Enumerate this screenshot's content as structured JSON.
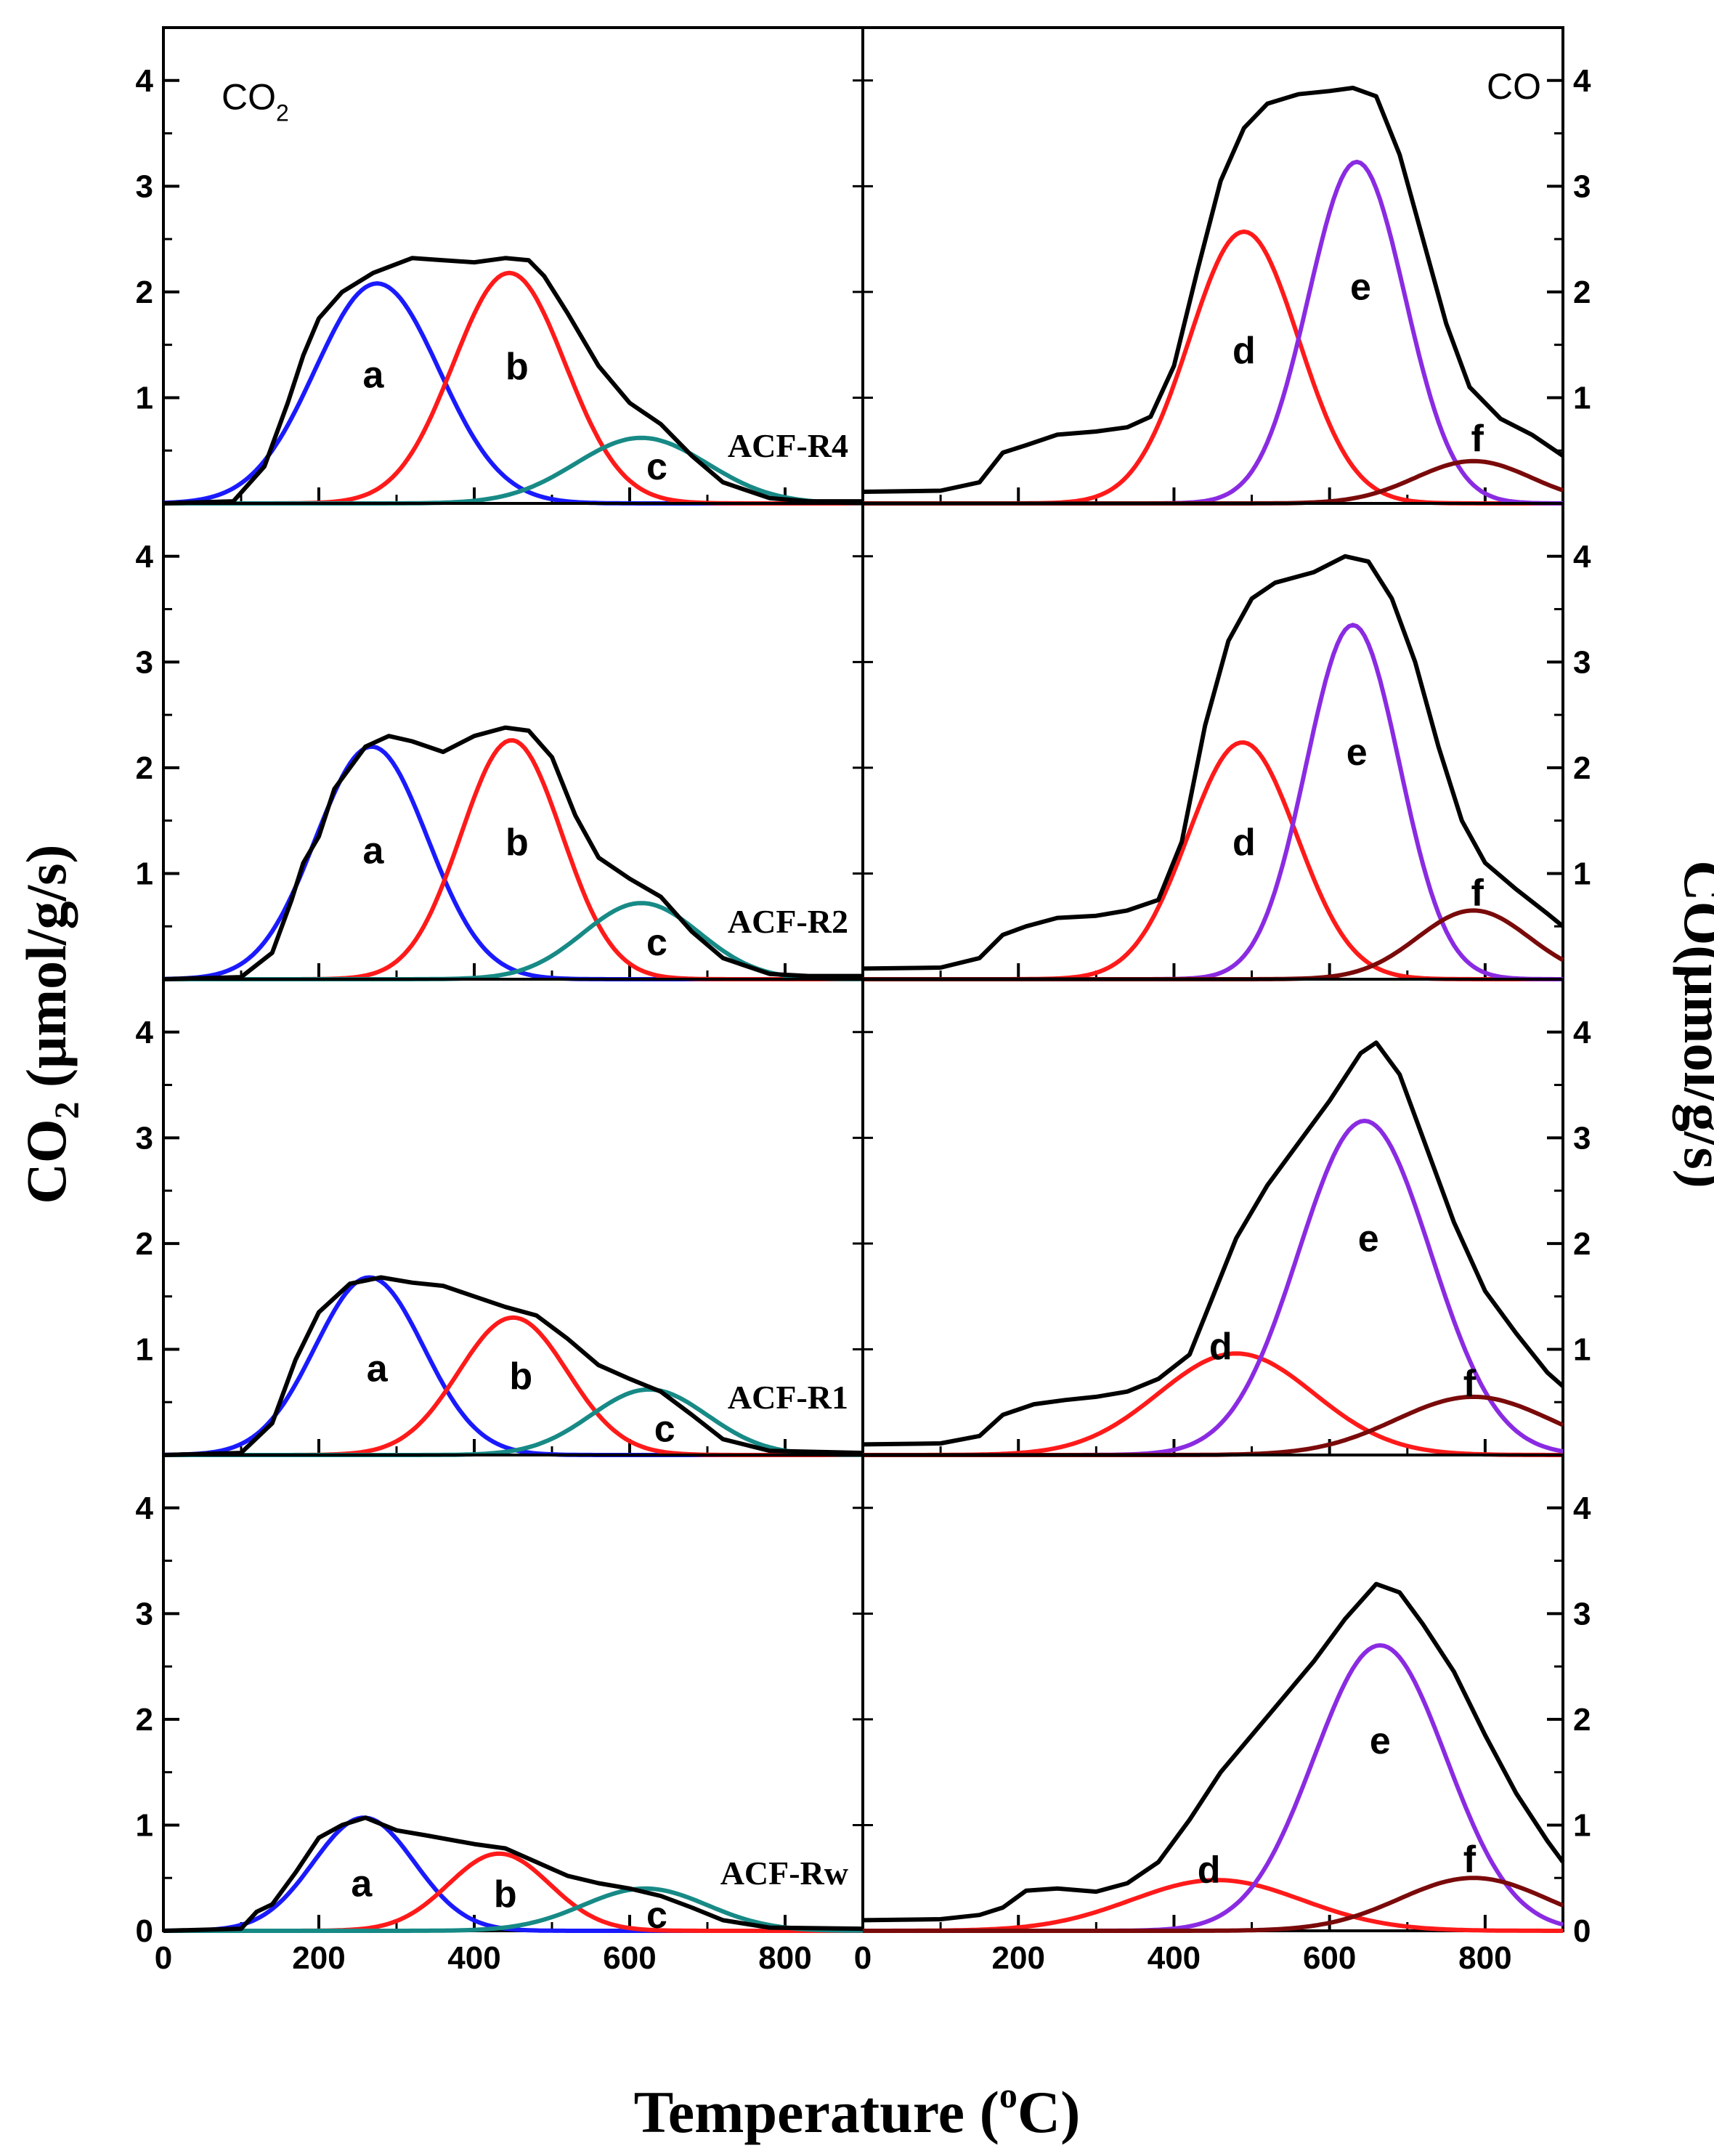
{
  "chart_data": {
    "type": "line",
    "x_label_prefix": "Temperature (",
    "x_label_sup": "o",
    "x_label_suffix": "C)",
    "y_left_label_main": "CO",
    "y_left_label_sub": "2",
    "y_left_label_unit": " (μmol/g/s)",
    "y_right_label": "CO(μmol/g/s)",
    "ylim": [
      0,
      4.5
    ],
    "y_ticks": [
      0,
      1,
      2,
      3,
      4
    ],
    "xlim_left": [
      0,
      900
    ],
    "xlim_right": [
      0,
      900
    ],
    "x_ticks_left": [
      0,
      200,
      400,
      600,
      800
    ],
    "x_ticks_right": [
      0,
      200,
      400,
      600,
      800
    ],
    "gas_label_left_main": "CO",
    "gas_label_left_sub": "2",
    "gas_label_right": "CO",
    "colors": {
      "total": "#000000",
      "a": "#1a1aff",
      "b": "#ff1a1a",
      "c": "#178a86",
      "d": "#ff1a1a",
      "e": "#8a2be2",
      "f": "#7a0a0a"
    },
    "panels": [
      {
        "sample": "ACF-R4",
        "co2_peaks": [
          {
            "label": "a",
            "center": 275,
            "height": 2.08,
            "sigma": 80,
            "label_x": 270,
            "label_y": 1.22
          },
          {
            "label": "b",
            "center": 445,
            "height": 2.18,
            "sigma": 72,
            "label_x": 455,
            "label_y": 1.3
          },
          {
            "label": "c",
            "center": 615,
            "height": 0.62,
            "sigma": 85,
            "label_x": 635,
            "label_y": 0.35
          }
        ],
        "co2_total": [
          [
            0,
            0
          ],
          [
            90,
            0.02
          ],
          [
            130,
            0.35
          ],
          [
            160,
            0.95
          ],
          [
            180,
            1.4
          ],
          [
            200,
            1.75
          ],
          [
            230,
            2.0
          ],
          [
            270,
            2.18
          ],
          [
            320,
            2.32
          ],
          [
            360,
            2.3
          ],
          [
            400,
            2.28
          ],
          [
            440,
            2.32
          ],
          [
            470,
            2.3
          ],
          [
            490,
            2.15
          ],
          [
            520,
            1.8
          ],
          [
            560,
            1.3
          ],
          [
            600,
            0.95
          ],
          [
            640,
            0.75
          ],
          [
            680,
            0.45
          ],
          [
            720,
            0.2
          ],
          [
            780,
            0.05
          ],
          [
            830,
            0.02
          ],
          [
            900,
            0.02
          ]
        ],
        "co_peaks": [
          {
            "label": "d",
            "center": 490,
            "height": 2.57,
            "sigma": 70,
            "label_x": 490,
            "label_y": 1.45
          },
          {
            "label": "e",
            "center": 635,
            "height": 3.23,
            "sigma": 62,
            "label_x": 640,
            "label_y": 2.05
          },
          {
            "label": "f",
            "center": 785,
            "height": 0.4,
            "sigma": 75,
            "label_x": 790,
            "label_y": 0.62
          }
        ],
        "co_total": [
          [
            0,
            0.11
          ],
          [
            100,
            0.12
          ],
          [
            150,
            0.2
          ],
          [
            180,
            0.48
          ],
          [
            210,
            0.55
          ],
          [
            250,
            0.65
          ],
          [
            300,
            0.68
          ],
          [
            340,
            0.72
          ],
          [
            370,
            0.82
          ],
          [
            400,
            1.3
          ],
          [
            430,
            2.2
          ],
          [
            460,
            3.05
          ],
          [
            490,
            3.55
          ],
          [
            520,
            3.78
          ],
          [
            560,
            3.87
          ],
          [
            600,
            3.9
          ],
          [
            630,
            3.93
          ],
          [
            660,
            3.85
          ],
          [
            690,
            3.3
          ],
          [
            720,
            2.5
          ],
          [
            750,
            1.7
          ],
          [
            780,
            1.1
          ],
          [
            820,
            0.8
          ],
          [
            860,
            0.65
          ],
          [
            900,
            0.45
          ]
        ]
      },
      {
        "sample": "ACF-R2",
        "co2_peaks": [
          {
            "label": "a",
            "center": 268,
            "height": 2.2,
            "sigma": 72,
            "label_x": 270,
            "label_y": 1.22
          },
          {
            "label": "b",
            "center": 448,
            "height": 2.26,
            "sigma": 65,
            "label_x": 455,
            "label_y": 1.3
          },
          {
            "label": "c",
            "center": 615,
            "height": 0.72,
            "sigma": 75,
            "label_x": 635,
            "label_y": 0.35
          }
        ],
        "co2_total": [
          [
            0,
            0
          ],
          [
            100,
            0.02
          ],
          [
            140,
            0.25
          ],
          [
            165,
            0.75
          ],
          [
            180,
            1.1
          ],
          [
            200,
            1.35
          ],
          [
            220,
            1.8
          ],
          [
            260,
            2.2
          ],
          [
            290,
            2.3
          ],
          [
            320,
            2.25
          ],
          [
            360,
            2.15
          ],
          [
            400,
            2.3
          ],
          [
            440,
            2.38
          ],
          [
            470,
            2.35
          ],
          [
            500,
            2.1
          ],
          [
            530,
            1.55
          ],
          [
            560,
            1.15
          ],
          [
            600,
            0.95
          ],
          [
            640,
            0.78
          ],
          [
            680,
            0.45
          ],
          [
            720,
            0.2
          ],
          [
            780,
            0.05
          ],
          [
            830,
            0.03
          ],
          [
            900,
            0.03
          ]
        ],
        "co_peaks": [
          {
            "label": "d",
            "center": 488,
            "height": 2.24,
            "sigma": 70,
            "label_x": 490,
            "label_y": 1.3
          },
          {
            "label": "e",
            "center": 630,
            "height": 3.35,
            "sigma": 60,
            "label_x": 635,
            "label_y": 2.15
          },
          {
            "label": "f",
            "center": 785,
            "height": 0.65,
            "sigma": 72,
            "label_x": 790,
            "label_y": 0.82
          }
        ],
        "co_total": [
          [
            0,
            0.1
          ],
          [
            100,
            0.11
          ],
          [
            150,
            0.2
          ],
          [
            180,
            0.42
          ],
          [
            210,
            0.5
          ],
          [
            250,
            0.58
          ],
          [
            300,
            0.6
          ],
          [
            340,
            0.65
          ],
          [
            380,
            0.75
          ],
          [
            410,
            1.3
          ],
          [
            440,
            2.4
          ],
          [
            470,
            3.2
          ],
          [
            500,
            3.6
          ],
          [
            530,
            3.75
          ],
          [
            580,
            3.85
          ],
          [
            620,
            4.0
          ],
          [
            650,
            3.95
          ],
          [
            680,
            3.6
          ],
          [
            710,
            3.0
          ],
          [
            740,
            2.2
          ],
          [
            770,
            1.5
          ],
          [
            800,
            1.1
          ],
          [
            840,
            0.85
          ],
          [
            880,
            0.62
          ],
          [
            900,
            0.5
          ]
        ]
      },
      {
        "sample": "ACF-R1",
        "co2_peaks": [
          {
            "label": "a",
            "center": 265,
            "height": 1.68,
            "sigma": 70,
            "label_x": 275,
            "label_y": 0.82
          },
          {
            "label": "b",
            "center": 450,
            "height": 1.3,
            "sigma": 70,
            "label_x": 460,
            "label_y": 0.75
          },
          {
            "label": "c",
            "center": 625,
            "height": 0.62,
            "sigma": 75,
            "label_x": 645,
            "label_y": 0.25
          }
        ],
        "co2_total": [
          [
            0,
            0
          ],
          [
            100,
            0.02
          ],
          [
            140,
            0.3
          ],
          [
            170,
            0.9
          ],
          [
            200,
            1.35
          ],
          [
            240,
            1.62
          ],
          [
            280,
            1.68
          ],
          [
            320,
            1.63
          ],
          [
            360,
            1.6
          ],
          [
            400,
            1.5
          ],
          [
            440,
            1.4
          ],
          [
            480,
            1.32
          ],
          [
            520,
            1.1
          ],
          [
            560,
            0.85
          ],
          [
            600,
            0.72
          ],
          [
            640,
            0.6
          ],
          [
            680,
            0.38
          ],
          [
            720,
            0.15
          ],
          [
            780,
            0.04
          ],
          [
            900,
            0.02
          ]
        ],
        "co_peaks": [
          {
            "label": "d",
            "center": 480,
            "height": 0.96,
            "sigma": 100,
            "label_x": 460,
            "label_y": 1.03
          },
          {
            "label": "e",
            "center": 645,
            "height": 3.16,
            "sigma": 85,
            "label_x": 650,
            "label_y": 2.05
          },
          {
            "label": "f",
            "center": 785,
            "height": 0.55,
            "sigma": 100,
            "label_x": 780,
            "label_y": 0.68
          }
        ],
        "co_total": [
          [
            0,
            0.1
          ],
          [
            100,
            0.11
          ],
          [
            150,
            0.18
          ],
          [
            180,
            0.38
          ],
          [
            220,
            0.48
          ],
          [
            260,
            0.52
          ],
          [
            300,
            0.55
          ],
          [
            340,
            0.6
          ],
          [
            380,
            0.72
          ],
          [
            420,
            0.95
          ],
          [
            450,
            1.5
          ],
          [
            480,
            2.05
          ],
          [
            520,
            2.55
          ],
          [
            560,
            2.95
          ],
          [
            600,
            3.35
          ],
          [
            640,
            3.8
          ],
          [
            660,
            3.9
          ],
          [
            690,
            3.6
          ],
          [
            720,
            3.0
          ],
          [
            760,
            2.2
          ],
          [
            800,
            1.55
          ],
          [
            840,
            1.15
          ],
          [
            880,
            0.78
          ],
          [
            900,
            0.65
          ]
        ]
      },
      {
        "sample": "ACF-Rw",
        "co2_peaks": [
          {
            "label": "a",
            "center": 258,
            "height": 1.07,
            "sigma": 65,
            "label_x": 255,
            "label_y": 0.45
          },
          {
            "label": "b",
            "center": 432,
            "height": 0.73,
            "sigma": 65,
            "label_x": 440,
            "label_y": 0.35
          },
          {
            "label": "c",
            "center": 620,
            "height": 0.4,
            "sigma": 80,
            "label_x": 635,
            "label_y": 0.15
          }
        ],
        "co2_total": [
          [
            0,
            0
          ],
          [
            100,
            0.02
          ],
          [
            120,
            0.18
          ],
          [
            140,
            0.25
          ],
          [
            170,
            0.55
          ],
          [
            200,
            0.88
          ],
          [
            230,
            1.0
          ],
          [
            260,
            1.07
          ],
          [
            300,
            0.95
          ],
          [
            340,
            0.9
          ],
          [
            400,
            0.82
          ],
          [
            440,
            0.78
          ],
          [
            480,
            0.65
          ],
          [
            520,
            0.52
          ],
          [
            560,
            0.45
          ],
          [
            600,
            0.4
          ],
          [
            640,
            0.33
          ],
          [
            680,
            0.22
          ],
          [
            720,
            0.1
          ],
          [
            780,
            0.03
          ],
          [
            900,
            0.02
          ]
        ],
        "co_peaks": [
          {
            "label": "d",
            "center": 455,
            "height": 0.48,
            "sigma": 110,
            "label_x": 445,
            "label_y": 0.58
          },
          {
            "label": "e",
            "center": 665,
            "height": 2.7,
            "sigma": 85,
            "label_x": 665,
            "label_y": 1.8
          },
          {
            "label": "f",
            "center": 785,
            "height": 0.5,
            "sigma": 95,
            "label_x": 780,
            "label_y": 0.68
          }
        ],
        "co_total": [
          [
            0,
            0.1
          ],
          [
            100,
            0.11
          ],
          [
            150,
            0.15
          ],
          [
            180,
            0.22
          ],
          [
            210,
            0.38
          ],
          [
            250,
            0.4
          ],
          [
            300,
            0.37
          ],
          [
            340,
            0.45
          ],
          [
            380,
            0.65
          ],
          [
            420,
            1.05
          ],
          [
            460,
            1.5
          ],
          [
            500,
            1.85
          ],
          [
            540,
            2.2
          ],
          [
            580,
            2.55
          ],
          [
            620,
            2.95
          ],
          [
            660,
            3.28
          ],
          [
            690,
            3.2
          ],
          [
            720,
            2.9
          ],
          [
            760,
            2.45
          ],
          [
            800,
            1.85
          ],
          [
            840,
            1.3
          ],
          [
            880,
            0.85
          ],
          [
            900,
            0.65
          ]
        ]
      }
    ]
  }
}
